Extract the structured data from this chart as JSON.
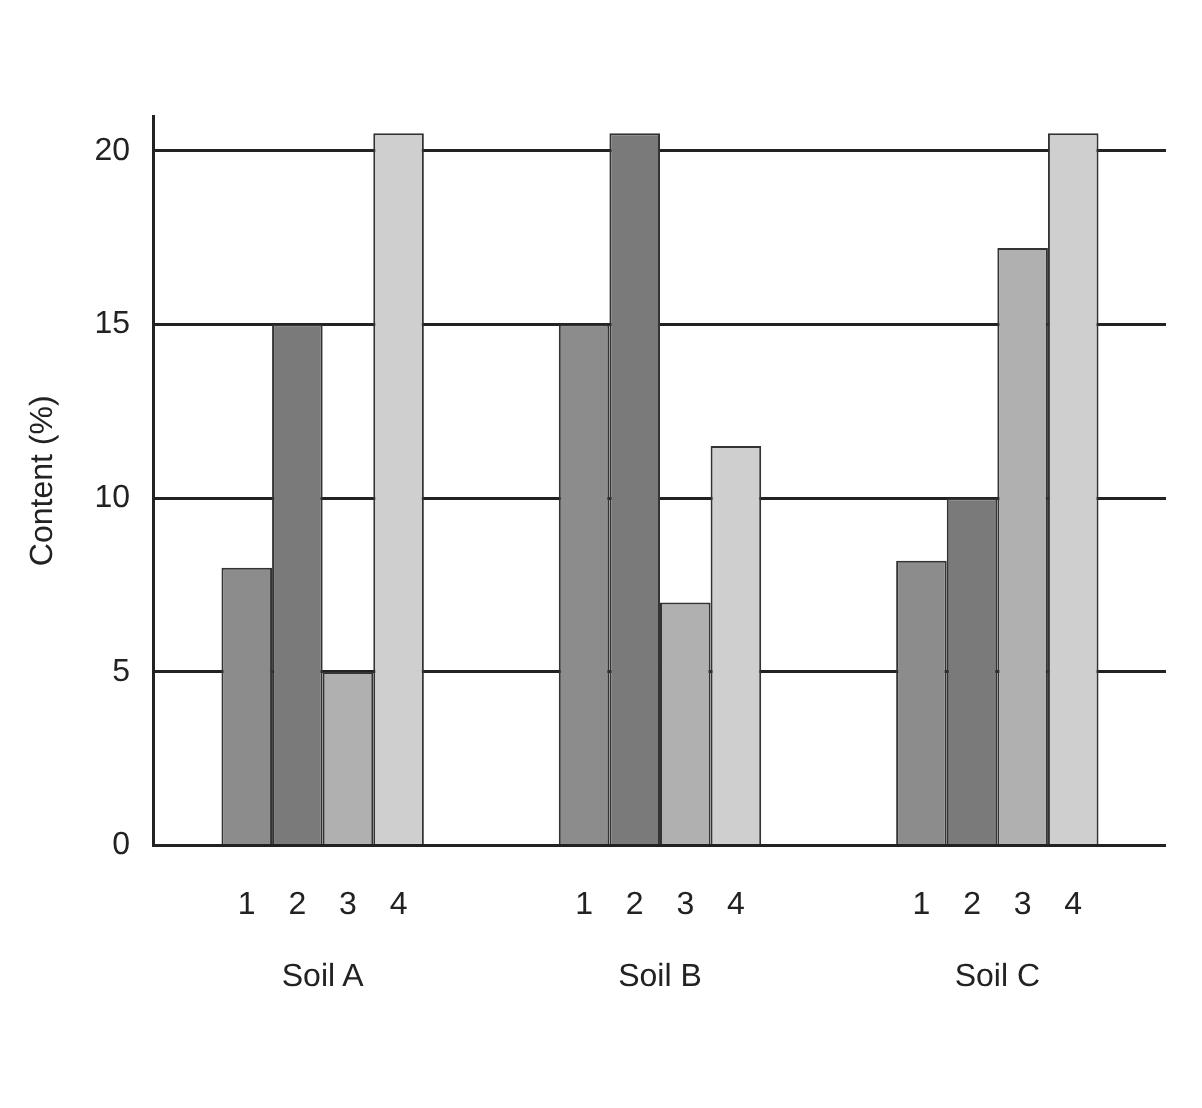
{
  "chart_data": {
    "type": "bar",
    "ylabel": "Content (%)",
    "categories": [
      "Soil A",
      "Soil B",
      "Soil C"
    ],
    "series": [
      {
        "name": "1",
        "color": "#8c8c8c",
        "values": [
          8,
          15,
          8.2
        ]
      },
      {
        "name": "2",
        "color": "#7a7a7a",
        "values": [
          15,
          20.5,
          10
        ]
      },
      {
        "name": "3",
        "color": "#b0b0b0",
        "values": [
          5,
          7,
          17.2
        ]
      },
      {
        "name": "4",
        "color": "#cfcfcf",
        "values": [
          20.5,
          11.5,
          20.5
        ]
      }
    ],
    "ylim": [
      0,
      21
    ],
    "yticks": [
      0,
      5,
      10,
      15,
      20
    ],
    "grid": "y",
    "legend": false
  }
}
